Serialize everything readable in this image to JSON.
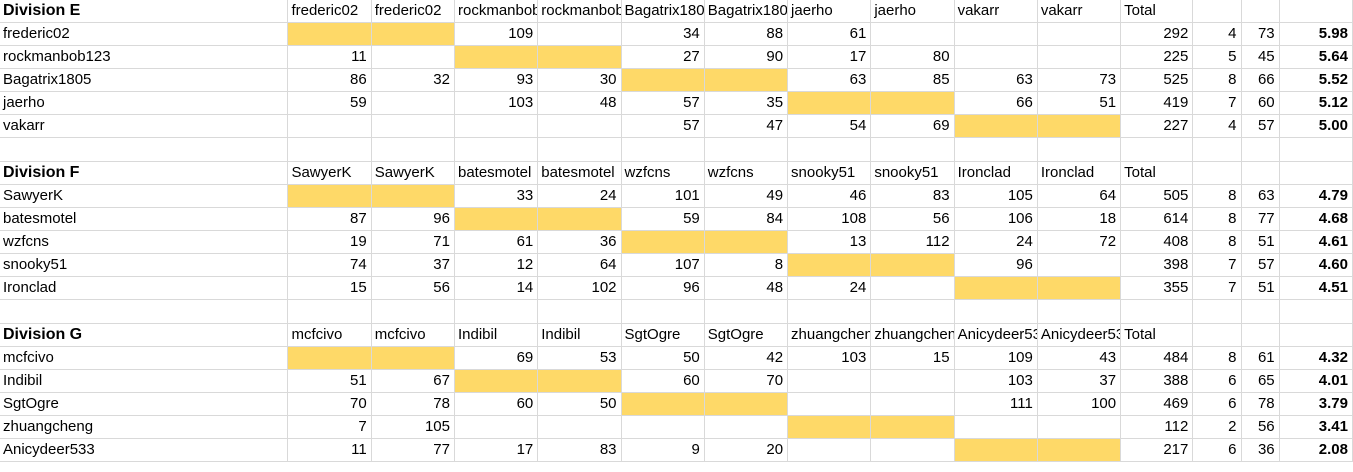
{
  "divisions": [
    {
      "title": "Division E",
      "headers": [
        "frederic02",
        "frederic02",
        "rockmanbob123",
        "rockmanbob123",
        "Bagatrix1805",
        "Bagatrix1805",
        "jaerho",
        "jaerho",
        "vakarr",
        "vakarr",
        "Total"
      ],
      "rows": [
        {
          "name": "frederic02",
          "cells": [
            "",
            "",
            "109",
            "",
            "34",
            "88",
            "61",
            "",
            "",
            "",
            ""
          ],
          "total": "292",
          "n": "4",
          "avg": "73",
          "score": "5.98"
        },
        {
          "name": "rockmanbob123",
          "cells": [
            "11",
            "",
            "",
            "",
            "27",
            "90",
            "17",
            "80",
            "",
            "",
            ""
          ],
          "total": "225",
          "n": "5",
          "avg": "45",
          "score": "5.64"
        },
        {
          "name": "Bagatrix1805",
          "cells": [
            "86",
            "32",
            "93",
            "30",
            "",
            "",
            "63",
            "85",
            "63",
            "73"
          ],
          "total": "525",
          "n": "8",
          "avg": "66",
          "score": "5.52"
        },
        {
          "name": "jaerho",
          "cells": [
            "59",
            "",
            "103",
            "48",
            "57",
            "35",
            "",
            "",
            "66",
            "51"
          ],
          "total": "419",
          "n": "7",
          "avg": "60",
          "score": "5.12"
        },
        {
          "name": "vakarr",
          "cells": [
            "",
            "",
            "",
            "",
            "57",
            "47",
            "54",
            "69",
            "",
            ""
          ],
          "total": "227",
          "n": "4",
          "avg": "57",
          "score": "5.00"
        }
      ]
    },
    {
      "title": "Division F",
      "headers": [
        "SawyerK",
        "SawyerK",
        "batesmotel",
        "batesmotel",
        "wzfcns",
        "wzfcns",
        "snooky51",
        "snooky51",
        "Ironclad",
        "Ironclad",
        "Total"
      ],
      "rows": [
        {
          "name": "SawyerK",
          "cells": [
            "",
            "",
            "33",
            "24",
            "101",
            "49",
            "46",
            "83",
            "105",
            "64"
          ],
          "total": "505",
          "n": "8",
          "avg": "63",
          "score": "4.79"
        },
        {
          "name": "batesmotel",
          "cells": [
            "87",
            "96",
            "",
            "",
            "59",
            "84",
            "108",
            "56",
            "106",
            "18"
          ],
          "total": "614",
          "n": "8",
          "avg": "77",
          "score": "4.68"
        },
        {
          "name": "wzfcns",
          "cells": [
            "19",
            "71",
            "61",
            "36",
            "",
            "",
            "13",
            "112",
            "24",
            "72"
          ],
          "total": "408",
          "n": "8",
          "avg": "51",
          "score": "4.61"
        },
        {
          "name": "snooky51",
          "cells": [
            "74",
            "37",
            "12",
            "64",
            "107",
            "8",
            "",
            "",
            "96",
            ""
          ],
          "total": "398",
          "n": "7",
          "avg": "57",
          "score": "4.60"
        },
        {
          "name": "Ironclad",
          "cells": [
            "15",
            "56",
            "14",
            "102",
            "96",
            "48",
            "24",
            "",
            "",
            ""
          ],
          "total": "355",
          "n": "7",
          "avg": "51",
          "score": "4.51"
        }
      ]
    },
    {
      "title": "Division G",
      "headers": [
        "mcfcivo",
        "mcfcivo",
        "Indibil",
        "Indibil",
        "SgtOgre",
        "SgtOgre",
        "zhuangcheng",
        "zhuangcheng",
        "Anicydeer533",
        "Anicydeer533",
        "Total"
      ],
      "rows": [
        {
          "name": "mcfcivo",
          "cells": [
            "",
            "",
            "69",
            "53",
            "50",
            "42",
            "103",
            "15",
            "109",
            "43"
          ],
          "total": "484",
          "n": "8",
          "avg": "61",
          "score": "4.32"
        },
        {
          "name": "Indibil",
          "cells": [
            "51",
            "67",
            "",
            "",
            "60",
            "70",
            "",
            "",
            "103",
            "37"
          ],
          "total": "388",
          "n": "6",
          "avg": "65",
          "score": "4.01"
        },
        {
          "name": "SgtOgre",
          "cells": [
            "70",
            "78",
            "60",
            "50",
            "",
            "",
            "",
            "",
            "111",
            "100"
          ],
          "total": "469",
          "n": "6",
          "avg": "78",
          "score": "3.79"
        },
        {
          "name": "zhuangcheng",
          "cells": [
            "7",
            "105",
            "",
            "",
            "",
            "",
            "",
            "",
            "",
            ""
          ],
          "total": "112",
          "n": "2",
          "avg": "56",
          "score": "3.41"
        },
        {
          "name": "Anicydeer533",
          "cells": [
            "11",
            "77",
            "17",
            "83",
            "9",
            "20",
            "",
            "",
            "",
            ""
          ],
          "total": "217",
          "n": "6",
          "avg": "36",
          "score": "2.08"
        }
      ]
    }
  ],
  "colors": {
    "highlight": "#fed968",
    "grid": "#d9d9d9"
  }
}
